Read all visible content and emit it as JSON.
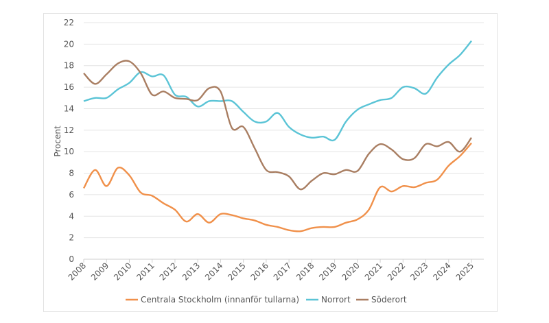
{
  "chart_data": {
    "type": "line",
    "title": "",
    "xlabel": "",
    "ylabel": "Procent",
    "ylim": [
      0,
      22
    ],
    "yticks": [
      0,
      2,
      4,
      6,
      8,
      10,
      12,
      14,
      16,
      18,
      20,
      22
    ],
    "xticks": [
      "2008",
      "2009",
      "2010",
      "2011",
      "2012",
      "2013",
      "2014",
      "2015",
      "2016",
      "2017",
      "2018",
      "2019",
      "2020",
      "2021",
      "2022",
      "2023",
      "2024",
      "2025"
    ],
    "grid": true,
    "legend": "bottom",
    "x": [
      2008,
      2008.5,
      2009,
      2009.5,
      2010,
      2010.5,
      2011,
      2011.5,
      2012,
      2012.5,
      2013,
      2013.5,
      2014,
      2014.5,
      2015,
      2015.5,
      2016,
      2016.5,
      2017,
      2017.5,
      2018,
      2018.5,
      2019,
      2019.5,
      2020,
      2020.5,
      2021,
      2021.5,
      2022,
      2022.5,
      2023,
      2023.5,
      2024,
      2024.5,
      2025
    ],
    "series": [
      {
        "name": "Centrala Stockholm (innanför tullarna)",
        "color": "#F0904A",
        "values": [
          6.6,
          8.3,
          6.8,
          8.5,
          7.8,
          6.2,
          5.9,
          5.2,
          4.6,
          3.5,
          4.2,
          3.4,
          4.2,
          4.1,
          3.8,
          3.6,
          3.2,
          3.0,
          2.7,
          2.6,
          2.9,
          3.0,
          3.0,
          3.4,
          3.7,
          4.6,
          6.7,
          6.3,
          6.8,
          6.7,
          7.1,
          7.4,
          8.7,
          9.6,
          10.8
        ]
      },
      {
        "name": "Norrort",
        "color": "#5BC4D6",
        "values": [
          14.7,
          15.0,
          15.0,
          15.8,
          16.4,
          17.4,
          17.0,
          17.1,
          15.3,
          15.1,
          14.2,
          14.7,
          14.7,
          14.7,
          13.7,
          12.8,
          12.8,
          13.6,
          12.3,
          11.6,
          11.3,
          11.4,
          11.1,
          12.8,
          13.9,
          14.4,
          14.8,
          15.0,
          16.0,
          15.9,
          15.4,
          16.9,
          18.1,
          19.0,
          20.3
        ]
      },
      {
        "name": "Söderort",
        "color": "#A97E62",
        "values": [
          17.3,
          16.3,
          17.2,
          18.2,
          18.4,
          17.3,
          15.3,
          15.6,
          15.0,
          14.9,
          14.8,
          15.9,
          15.6,
          12.2,
          12.3,
          10.3,
          8.3,
          8.1,
          7.7,
          6.5,
          7.3,
          8.0,
          7.9,
          8.3,
          8.2,
          9.8,
          10.7,
          10.2,
          9.3,
          9.4,
          10.7,
          10.5,
          10.9,
          10.0,
          11.3
        ]
      }
    ]
  }
}
